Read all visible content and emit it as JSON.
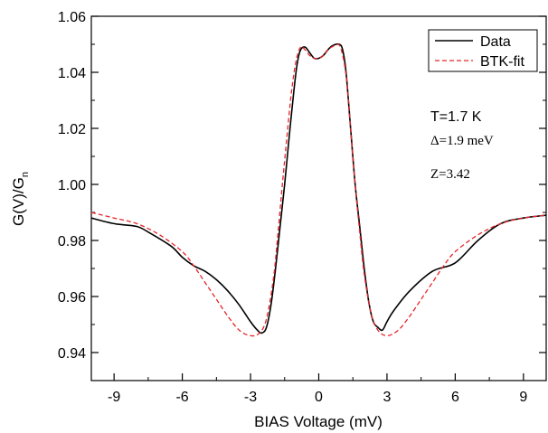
{
  "chart_data": {
    "type": "line",
    "xlabel": "BIAS Voltage (mV)",
    "ylabel_main": "G(V)/G",
    "ylabel_sub": "n",
    "xlim": [
      -10,
      10
    ],
    "ylim": [
      0.93,
      1.06
    ],
    "x_ticks": [
      -9,
      -6,
      -3,
      0,
      3,
      6,
      9
    ],
    "x_tick_labels": [
      "-9",
      "-6",
      "-3",
      "0",
      "3",
      "6",
      "9"
    ],
    "y_ticks": [
      0.94,
      0.96,
      0.98,
      1.0,
      1.02,
      1.04,
      1.06
    ],
    "y_tick_labels": [
      "0.94",
      "0.96",
      "0.98",
      "1.00",
      "1.02",
      "1.04",
      "1.06"
    ],
    "legend": {
      "position": "top-right",
      "entries": [
        "Data",
        "BTK-fit"
      ]
    },
    "annotations": {
      "temperature": "T=1.7 K",
      "gap": "Δ=1.9 meV",
      "barrier": "Z=3.42"
    },
    "series": [
      {
        "name": "Data",
        "color": "#000000",
        "style": "solid",
        "points": [
          [
            -10,
            0.988
          ],
          [
            -9,
            0.986
          ],
          [
            -8,
            0.985
          ],
          [
            -7.5,
            0.983
          ],
          [
            -6.5,
            0.978
          ],
          [
            -6,
            0.974
          ],
          [
            -5.5,
            0.971
          ],
          [
            -5,
            0.969
          ],
          [
            -4.5,
            0.966
          ],
          [
            -4,
            0.962
          ],
          [
            -3.5,
            0.957
          ],
          [
            -3,
            0.951
          ],
          [
            -2.7,
            0.948
          ],
          [
            -2.5,
            0.947
          ],
          [
            -2.3,
            0.949
          ],
          [
            -2.1,
            0.957
          ],
          [
            -1.9,
            0.97
          ],
          [
            -1.7,
            0.985
          ],
          [
            -1.5,
            1.0
          ],
          [
            -1.3,
            1.017
          ],
          [
            -1.1,
            1.033
          ],
          [
            -0.95,
            1.043
          ],
          [
            -0.8,
            1.048
          ],
          [
            -0.6,
            1.049
          ],
          [
            -0.4,
            1.047
          ],
          [
            -0.2,
            1.045
          ],
          [
            0,
            1.045
          ],
          [
            0.2,
            1.046
          ],
          [
            0.4,
            1.048
          ],
          [
            0.6,
            1.0495
          ],
          [
            0.9,
            1.05
          ],
          [
            1.05,
            1.048
          ],
          [
            1.2,
            1.04
          ],
          [
            1.4,
            1.02
          ],
          [
            1.6,
            1.0
          ],
          [
            1.8,
            0.985
          ],
          [
            2.0,
            0.97
          ],
          [
            2.2,
            0.958
          ],
          [
            2.4,
            0.951
          ],
          [
            2.6,
            0.949
          ],
          [
            2.8,
            0.948
          ],
          [
            3.0,
            0.951
          ],
          [
            3.3,
            0.955
          ],
          [
            4,
            0.962
          ],
          [
            5,
            0.969
          ],
          [
            6,
            0.972
          ],
          [
            7,
            0.98
          ],
          [
            8,
            0.986
          ],
          [
            9,
            0.988
          ],
          [
            10,
            0.989
          ]
        ]
      },
      {
        "name": "BTK-fit",
        "color": "#e8242a",
        "style": "dashed",
        "points": [
          [
            -10,
            0.99
          ],
          [
            -9,
            0.988
          ],
          [
            -8,
            0.986
          ],
          [
            -7,
            0.982
          ],
          [
            -6,
            0.976
          ],
          [
            -5.5,
            0.971
          ],
          [
            -5,
            0.965
          ],
          [
            -4.5,
            0.959
          ],
          [
            -4,
            0.953
          ],
          [
            -3.5,
            0.948
          ],
          [
            -3,
            0.946
          ],
          [
            -2.6,
            0.947
          ],
          [
            -2.3,
            0.952
          ],
          [
            -2.0,
            0.966
          ],
          [
            -1.8,
            0.982
          ],
          [
            -1.6,
            1.0
          ],
          [
            -1.4,
            1.017
          ],
          [
            -1.2,
            1.033
          ],
          [
            -1.0,
            1.044
          ],
          [
            -0.8,
            1.049
          ],
          [
            -0.6,
            1.048
          ],
          [
            -0.4,
            1.046
          ],
          [
            -0.2,
            1.045
          ],
          [
            0,
            1.045
          ],
          [
            0.2,
            1.046
          ],
          [
            0.4,
            1.048
          ],
          [
            0.7,
            1.0495
          ],
          [
            0.95,
            1.049
          ],
          [
            1.2,
            1.039
          ],
          [
            1.4,
            1.02
          ],
          [
            1.6,
            1.0
          ],
          [
            1.8,
            0.983
          ],
          [
            2.0,
            0.968
          ],
          [
            2.3,
            0.954
          ],
          [
            2.6,
            0.948
          ],
          [
            3.0,
            0.946
          ],
          [
            3.5,
            0.948
          ],
          [
            4,
            0.953
          ],
          [
            4.5,
            0.959
          ],
          [
            5,
            0.965
          ],
          [
            5.5,
            0.971
          ],
          [
            6,
            0.976
          ],
          [
            7,
            0.982
          ],
          [
            8,
            0.986
          ],
          [
            9,
            0.988
          ],
          [
            10,
            0.989
          ]
        ]
      }
    ]
  }
}
